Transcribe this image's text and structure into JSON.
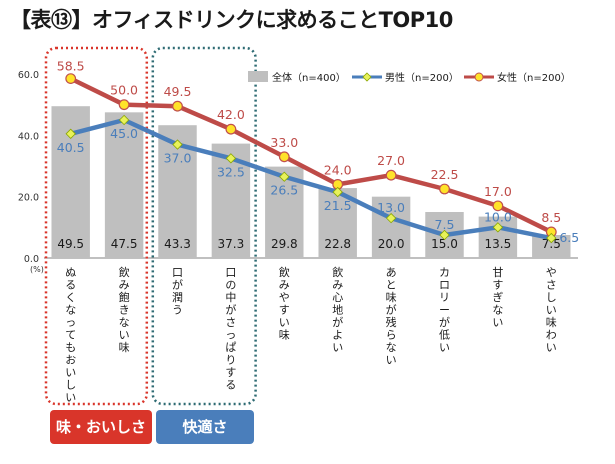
{
  "header": {
    "title": "【表⑬】オフィスドリンクに求めることTOP10"
  },
  "tags": {
    "taste": "味・おいしさ",
    "comfort": "快適さ"
  },
  "colors": {
    "bar": "#bfbfbf",
    "male": "#4a7ebb",
    "female": "#be4b48",
    "taste_box": "#d9352a",
    "comfort_box": "#2e6b73"
  },
  "chart_data": {
    "type": "bar",
    "unit_label": "(%)",
    "ylim": [
      0,
      60
    ],
    "yticks": [
      "0.0",
      "20.0",
      "40.0",
      "60.0"
    ],
    "categories": [
      "ぬるくなってもおいしい",
      "飲み飽きない味",
      "口が潤う",
      "口の中がさっぱりする",
      "飲みやすい味",
      "飲み心地がよい",
      "あと味が残らない",
      "カロリーが低い",
      "甘すぎない",
      "やさしい味わい"
    ],
    "series": [
      {
        "name": "全体（n=400）",
        "kind": "bar",
        "values": [
          49.5,
          47.5,
          43.3,
          37.3,
          29.8,
          22.8,
          20.0,
          15.0,
          13.5,
          7.5
        ],
        "labels": [
          "49.5",
          "47.5",
          "43.3",
          "37.3",
          "29.8",
          "22.8",
          "20.0",
          "15.0",
          "13.5",
          "7.5"
        ]
      },
      {
        "name": "男性（n=200）",
        "kind": "line",
        "values": [
          40.5,
          45.0,
          37.0,
          32.5,
          26.5,
          21.5,
          13.0,
          7.5,
          10.0,
          6.5
        ],
        "labels": [
          "40.5",
          "45.0",
          "37.0",
          "32.5",
          "26.5",
          "21.5",
          "13.0",
          "7.5",
          "10.0",
          "6.5"
        ]
      },
      {
        "name": "女性（n=200）",
        "kind": "line",
        "values": [
          58.5,
          50.0,
          49.5,
          42.0,
          33.0,
          24.0,
          27.0,
          22.5,
          17.0,
          8.5
        ],
        "labels": [
          "58.5",
          "50.0",
          "49.5",
          "42.0",
          "33.0",
          "24.0",
          "27.0",
          "22.5",
          "17.0",
          "8.5"
        ]
      }
    ]
  }
}
